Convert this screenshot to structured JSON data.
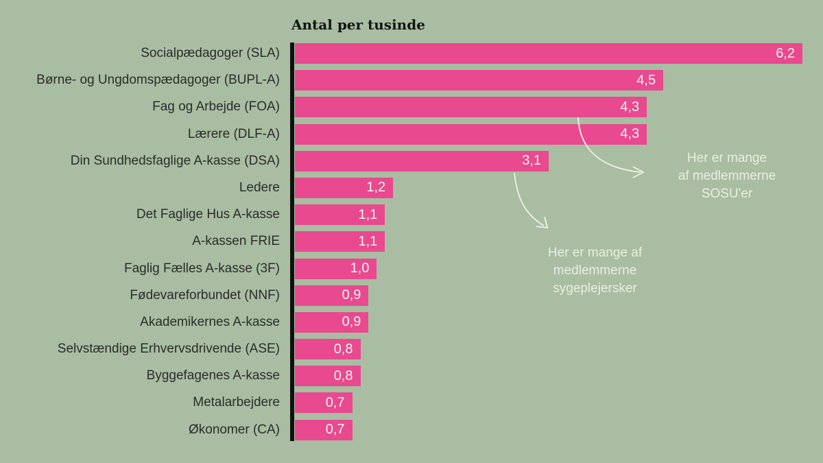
{
  "chart_data": {
    "type": "bar",
    "orientation": "horizontal",
    "title": "Antal per tusinde",
    "categories": [
      "Socialpædagoger (SLA)",
      "Børne- og Ungdomspædagoger (BUPL-A)",
      "Fag og Arbejde (FOA)",
      "Lærere (DLF-A)",
      "Din Sundhedsfaglige A-kasse (DSA)",
      "Ledere",
      "Det Faglige Hus A-kasse",
      "A-kassen FRIE",
      "Faglig Fælles A-kasse (3F)",
      "Fødevareforbundet (NNF)",
      "Akademikernes A-kasse",
      "Selvstændige Erhvervsdrivende (ASE)",
      "Byggefagenes A-kasse",
      "Metalarbejdere",
      "Økonomer (CA)"
    ],
    "values": [
      6.2,
      4.5,
      4.3,
      4.3,
      3.1,
      1.2,
      1.1,
      1.1,
      1.0,
      0.9,
      0.9,
      0.8,
      0.8,
      0.7,
      0.7
    ],
    "value_labels": [
      "6,2",
      "4,5",
      "4,3",
      "4,3",
      "3,1",
      "1,2",
      "1,1",
      "1,1",
      "1,0",
      "0,9",
      "0,9",
      "0,8",
      "0,8",
      "0,7",
      "0,7"
    ],
    "xlim": [
      0,
      6.2
    ],
    "grid": false,
    "legend": "none",
    "annotations": [
      {
        "lines": [
          "Her er mange",
          "af medlemmerne",
          "SOSU'er"
        ],
        "points_at": "Fag og Arbejde (FOA)"
      },
      {
        "lines": [
          "Her er mange af",
          "medlemmerne",
          "sygeplejersker"
        ],
        "points_at": "Din Sundhedsfaglige A-kasse (DSA)"
      }
    ],
    "colors": {
      "background": "#a9bda2",
      "bar": "#e8498f",
      "axis": "#101010",
      "label_text": "#2b2b2b",
      "value_text": "#f8f5f3",
      "annotation": "#e9eee3",
      "title_text": "#141414"
    }
  }
}
